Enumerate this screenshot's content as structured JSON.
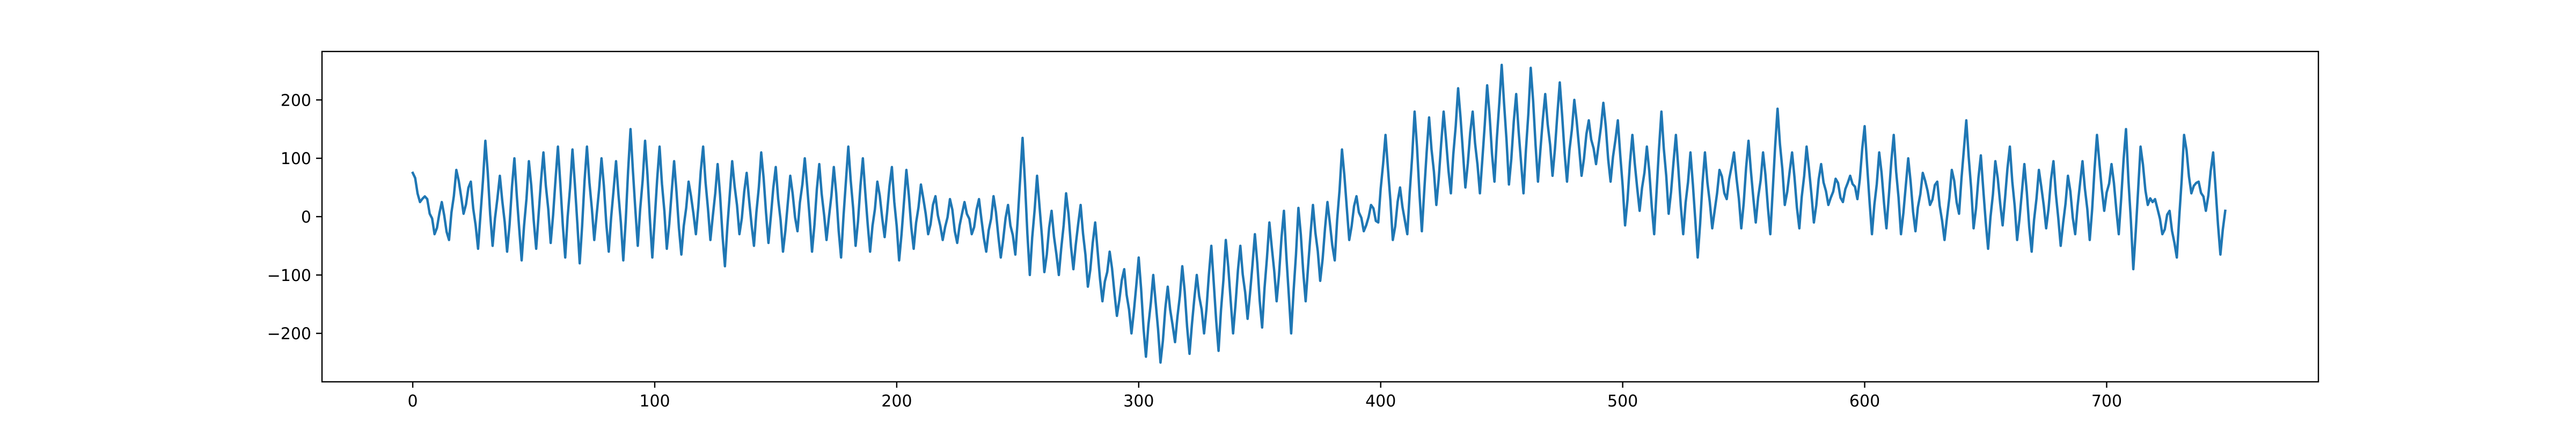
{
  "chart_data": {
    "type": "line",
    "title": "",
    "xlabel": "",
    "ylabel": "",
    "xlim": [
      -37.5,
      787.5
    ],
    "ylim": [
      -283,
      283
    ],
    "x_ticks": [
      0,
      100,
      200,
      300,
      400,
      500,
      600,
      700
    ],
    "x_tick_labels": [
      "0",
      "100",
      "200",
      "300",
      "400",
      "500",
      "600",
      "700"
    ],
    "y_ticks": [
      -200,
      -100,
      0,
      100,
      200
    ],
    "y_tick_labels": [
      "−200",
      "−100",
      "0",
      "100",
      "200"
    ],
    "grid": false,
    "legend": "none",
    "line_color": "#1f77b4",
    "series": [
      {
        "color": "#1f77b4",
        "x_start": 0,
        "x_step": 1,
        "anchors": [
          [
            0,
            75
          ],
          [
            3,
            25
          ],
          [
            6,
            30
          ],
          [
            9,
            -30
          ],
          [
            12,
            25
          ],
          [
            15,
            -40
          ],
          [
            18,
            80
          ],
          [
            21,
            5
          ],
          [
            24,
            60
          ],
          [
            27,
            -55
          ],
          [
            30,
            130
          ],
          [
            33,
            -50
          ],
          [
            36,
            70
          ],
          [
            39,
            -60
          ],
          [
            42,
            100
          ],
          [
            45,
            -75
          ],
          [
            48,
            95
          ],
          [
            51,
            -55
          ],
          [
            54,
            110
          ],
          [
            57,
            -45
          ],
          [
            60,
            120
          ],
          [
            63,
            -70
          ],
          [
            66,
            115
          ],
          [
            69,
            -80
          ],
          [
            72,
            120
          ],
          [
            75,
            -40
          ],
          [
            78,
            100
          ],
          [
            81,
            -60
          ],
          [
            84,
            95
          ],
          [
            87,
            -75
          ],
          [
            90,
            150
          ],
          [
            93,
            -50
          ],
          [
            96,
            130
          ],
          [
            99,
            -70
          ],
          [
            102,
            120
          ],
          [
            105,
            -55
          ],
          [
            108,
            95
          ],
          [
            111,
            -65
          ],
          [
            114,
            60
          ],
          [
            117,
            -30
          ],
          [
            120,
            120
          ],
          [
            123,
            -40
          ],
          [
            126,
            90
          ],
          [
            129,
            -85
          ],
          [
            132,
            95
          ],
          [
            135,
            -30
          ],
          [
            138,
            75
          ],
          [
            141,
            -50
          ],
          [
            144,
            110
          ],
          [
            147,
            -45
          ],
          [
            150,
            85
          ],
          [
            153,
            -60
          ],
          [
            156,
            70
          ],
          [
            159,
            -25
          ],
          [
            162,
            100
          ],
          [
            165,
            -60
          ],
          [
            168,
            90
          ],
          [
            171,
            -40
          ],
          [
            174,
            85
          ],
          [
            177,
            -70
          ],
          [
            180,
            120
          ],
          [
            183,
            -50
          ],
          [
            186,
            100
          ],
          [
            189,
            -60
          ],
          [
            192,
            60
          ],
          [
            195,
            -35
          ],
          [
            198,
            85
          ],
          [
            201,
            -75
          ],
          [
            204,
            80
          ],
          [
            207,
            -55
          ],
          [
            210,
            55
          ],
          [
            213,
            -30
          ],
          [
            216,
            35
          ],
          [
            219,
            -40
          ],
          [
            222,
            30
          ],
          [
            225,
            -45
          ],
          [
            228,
            25
          ],
          [
            231,
            -30
          ],
          [
            234,
            30
          ],
          [
            237,
            -60
          ],
          [
            240,
            35
          ],
          [
            243,
            -70
          ],
          [
            246,
            20
          ],
          [
            249,
            -65
          ],
          [
            252,
            135
          ],
          [
            255,
            -100
          ],
          [
            258,
            70
          ],
          [
            261,
            -95
          ],
          [
            264,
            10
          ],
          [
            267,
            -100
          ],
          [
            270,
            40
          ],
          [
            273,
            -90
          ],
          [
            276,
            20
          ],
          [
            279,
            -120
          ],
          [
            282,
            -10
          ],
          [
            285,
            -145
          ],
          [
            288,
            -60
          ],
          [
            291,
            -170
          ],
          [
            294,
            -90
          ],
          [
            297,
            -200
          ],
          [
            300,
            -70
          ],
          [
            303,
            -240
          ],
          [
            306,
            -100
          ],
          [
            309,
            -250
          ],
          [
            312,
            -120
          ],
          [
            315,
            -215
          ],
          [
            318,
            -85
          ],
          [
            321,
            -235
          ],
          [
            324,
            -100
          ],
          [
            327,
            -200
          ],
          [
            330,
            -50
          ],
          [
            333,
            -230
          ],
          [
            336,
            -40
          ],
          [
            339,
            -200
          ],
          [
            342,
            -50
          ],
          [
            345,
            -175
          ],
          [
            348,
            -30
          ],
          [
            351,
            -190
          ],
          [
            354,
            -10
          ],
          [
            357,
            -145
          ],
          [
            360,
            10
          ],
          [
            363,
            -200
          ],
          [
            366,
            15
          ],
          [
            369,
            -145
          ],
          [
            372,
            20
          ],
          [
            375,
            -110
          ],
          [
            378,
            25
          ],
          [
            381,
            -75
          ],
          [
            384,
            115
          ],
          [
            387,
            -40
          ],
          [
            390,
            35
          ],
          [
            393,
            -25
          ],
          [
            396,
            20
          ],
          [
            399,
            -10
          ],
          [
            402,
            140
          ],
          [
            405,
            -40
          ],
          [
            408,
            50
          ],
          [
            411,
            -30
          ],
          [
            414,
            180
          ],
          [
            417,
            -25
          ],
          [
            420,
            170
          ],
          [
            423,
            20
          ],
          [
            426,
            180
          ],
          [
            429,
            40
          ],
          [
            432,
            220
          ],
          [
            435,
            50
          ],
          [
            438,
            180
          ],
          [
            441,
            40
          ],
          [
            444,
            225
          ],
          [
            447,
            60
          ],
          [
            450,
            260
          ],
          [
            453,
            55
          ],
          [
            456,
            210
          ],
          [
            459,
            40
          ],
          [
            462,
            255
          ],
          [
            465,
            60
          ],
          [
            468,
            210
          ],
          [
            471,
            70
          ],
          [
            474,
            230
          ],
          [
            477,
            60
          ],
          [
            480,
            200
          ],
          [
            483,
            70
          ],
          [
            486,
            165
          ],
          [
            489,
            90
          ],
          [
            492,
            195
          ],
          [
            495,
            60
          ],
          [
            498,
            165
          ],
          [
            501,
            -15
          ],
          [
            504,
            140
          ],
          [
            507,
            10
          ],
          [
            510,
            120
          ],
          [
            513,
            -30
          ],
          [
            516,
            180
          ],
          [
            519,
            5
          ],
          [
            522,
            140
          ],
          [
            525,
            -30
          ],
          [
            528,
            110
          ],
          [
            531,
            -70
          ],
          [
            534,
            110
          ],
          [
            537,
            -20
          ],
          [
            540,
            80
          ],
          [
            543,
            30
          ],
          [
            546,
            110
          ],
          [
            549,
            -20
          ],
          [
            552,
            130
          ],
          [
            555,
            -10
          ],
          [
            558,
            110
          ],
          [
            561,
            -30
          ],
          [
            564,
            185
          ],
          [
            567,
            20
          ],
          [
            570,
            110
          ],
          [
            573,
            -20
          ],
          [
            576,
            120
          ],
          [
            579,
            -10
          ],
          [
            582,
            90
          ],
          [
            585,
            20
          ],
          [
            588,
            65
          ],
          [
            591,
            25
          ],
          [
            594,
            70
          ],
          [
            597,
            30
          ],
          [
            600,
            155
          ],
          [
            603,
            -30
          ],
          [
            606,
            110
          ],
          [
            609,
            -20
          ],
          [
            612,
            140
          ],
          [
            615,
            -30
          ],
          [
            618,
            100
          ],
          [
            621,
            -25
          ],
          [
            624,
            75
          ],
          [
            627,
            20
          ],
          [
            630,
            60
          ],
          [
            633,
            -40
          ],
          [
            636,
            80
          ],
          [
            639,
            5
          ],
          [
            642,
            165
          ],
          [
            645,
            -20
          ],
          [
            648,
            105
          ],
          [
            651,
            -55
          ],
          [
            654,
            95
          ],
          [
            657,
            -15
          ],
          [
            660,
            120
          ],
          [
            663,
            -40
          ],
          [
            666,
            90
          ],
          [
            669,
            -60
          ],
          [
            672,
            80
          ],
          [
            675,
            -20
          ],
          [
            678,
            95
          ],
          [
            681,
            -50
          ],
          [
            684,
            70
          ],
          [
            687,
            -30
          ],
          [
            690,
            95
          ],
          [
            693,
            -40
          ],
          [
            696,
            140
          ],
          [
            699,
            10
          ],
          [
            702,
            90
          ],
          [
            705,
            -30
          ],
          [
            708,
            150
          ],
          [
            711,
            -90
          ],
          [
            714,
            120
          ],
          [
            717,
            20
          ],
          [
            720,
            30
          ],
          [
            723,
            -30
          ],
          [
            726,
            10
          ],
          [
            729,
            -70
          ],
          [
            732,
            140
          ],
          [
            735,
            40
          ],
          [
            738,
            60
          ],
          [
            741,
            10
          ],
          [
            744,
            110
          ],
          [
            747,
            -65
          ],
          [
            749,
            10
          ]
        ]
      }
    ]
  }
}
